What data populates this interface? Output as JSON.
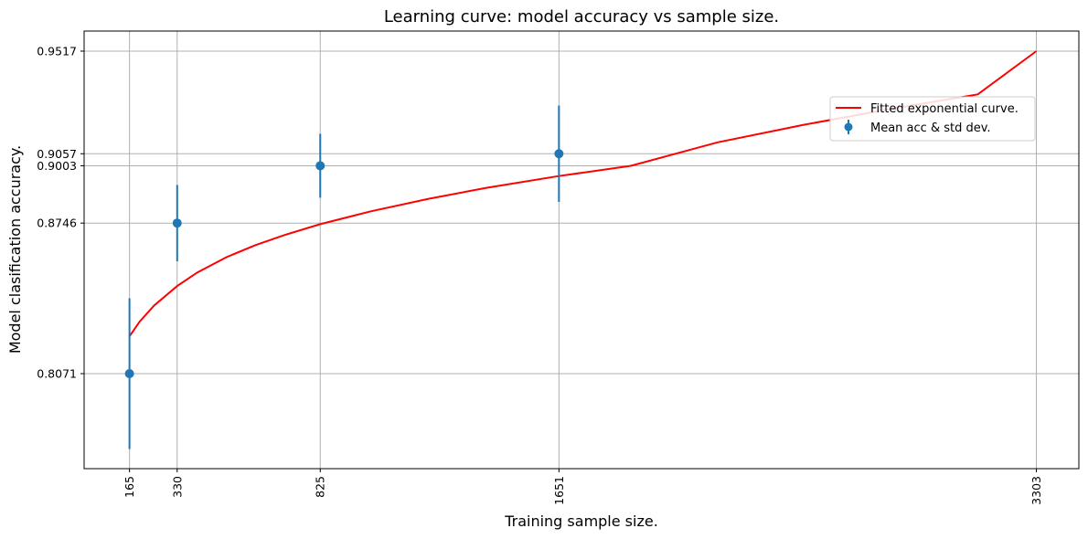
{
  "chart_data": {
    "type": "scatter",
    "title": "Learning curve: model accuracy vs sample size.",
    "xlabel": "Training sample size.",
    "ylabel": "Model clasification accuracy.",
    "x_ticks": [
      165,
      330,
      825,
      1651,
      3303
    ],
    "y_ticks": [
      0.8071,
      0.8746,
      0.9003,
      0.9057,
      0.9517
    ],
    "xlim": [
      8,
      3450
    ],
    "ylim": [
      0.7645,
      0.9607
    ],
    "grid": true,
    "legend_position": "upper-right",
    "series": [
      {
        "name": "Mean acc & std dev.",
        "kind": "errorbar",
        "color": "#1f77b4",
        "x": [
          165,
          330,
          825,
          1651
        ],
        "y": [
          0.8071,
          0.8746,
          0.9003,
          0.9057
        ],
        "yerr": [
          0.0338,
          0.0171,
          0.0143,
          0.0216
        ]
      },
      {
        "name": "Fitted exponential curve.",
        "kind": "line",
        "color": "#ff0000",
        "x": [
          165,
          200,
          250,
          330,
          400,
          500,
          600,
          700,
          825,
          1000,
          1200,
          1400,
          1651,
          1900,
          2200,
          2500,
          2800,
          3100,
          3303
        ],
        "y": [
          0.8238,
          0.8304,
          0.8376,
          0.8464,
          0.8525,
          0.8593,
          0.8647,
          0.8692,
          0.8741,
          0.8799,
          0.8855,
          0.8904,
          0.8957,
          0.9003,
          0.9108,
          0.9187,
          0.9258,
          0.9323,
          0.9517
        ]
      }
    ]
  }
}
